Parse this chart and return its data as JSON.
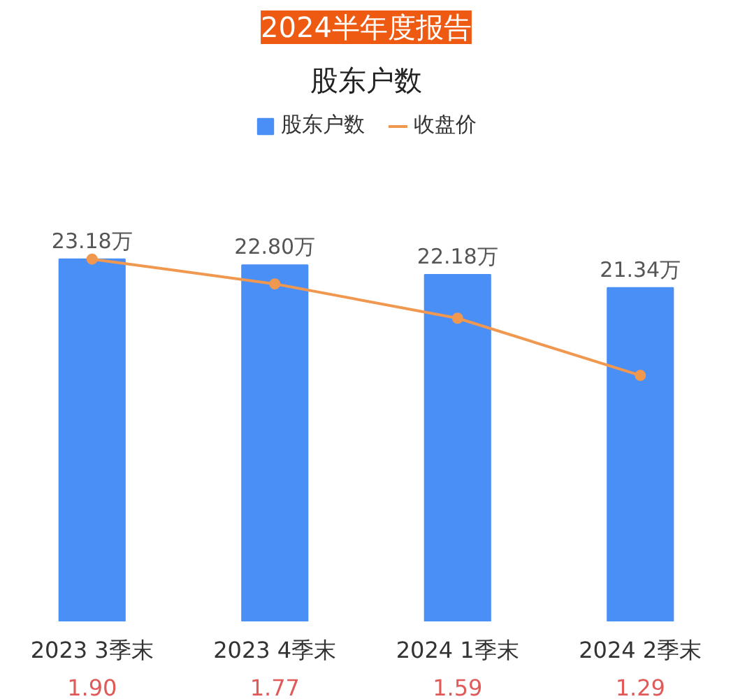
{
  "chart_data": {
    "type": "bar",
    "title": "2024半年度报告",
    "subtitle": "股东户数",
    "categories": [
      "2023 3季末",
      "2023 4季末",
      "2024 1季末",
      "2024 2季末"
    ],
    "legend": "top",
    "marker": "circle",
    "series": [
      {
        "name": "股东户数",
        "color": "#4a8ff5",
        "values": [
          23.18,
          22.8,
          22.18,
          21.34
        ],
        "value_labels": [
          "23.18万",
          "22.80万",
          "22.18万",
          "21.34万"
        ]
      },
      {
        "name": "收盘价",
        "type": "line",
        "axis": "y2",
        "color": "#f0984f",
        "values": [
          1.9,
          1.77,
          1.59,
          1.29
        ],
        "value_labels": [
          "1.90",
          "1.77",
          "1.59",
          "1.29"
        ]
      }
    ]
  }
}
